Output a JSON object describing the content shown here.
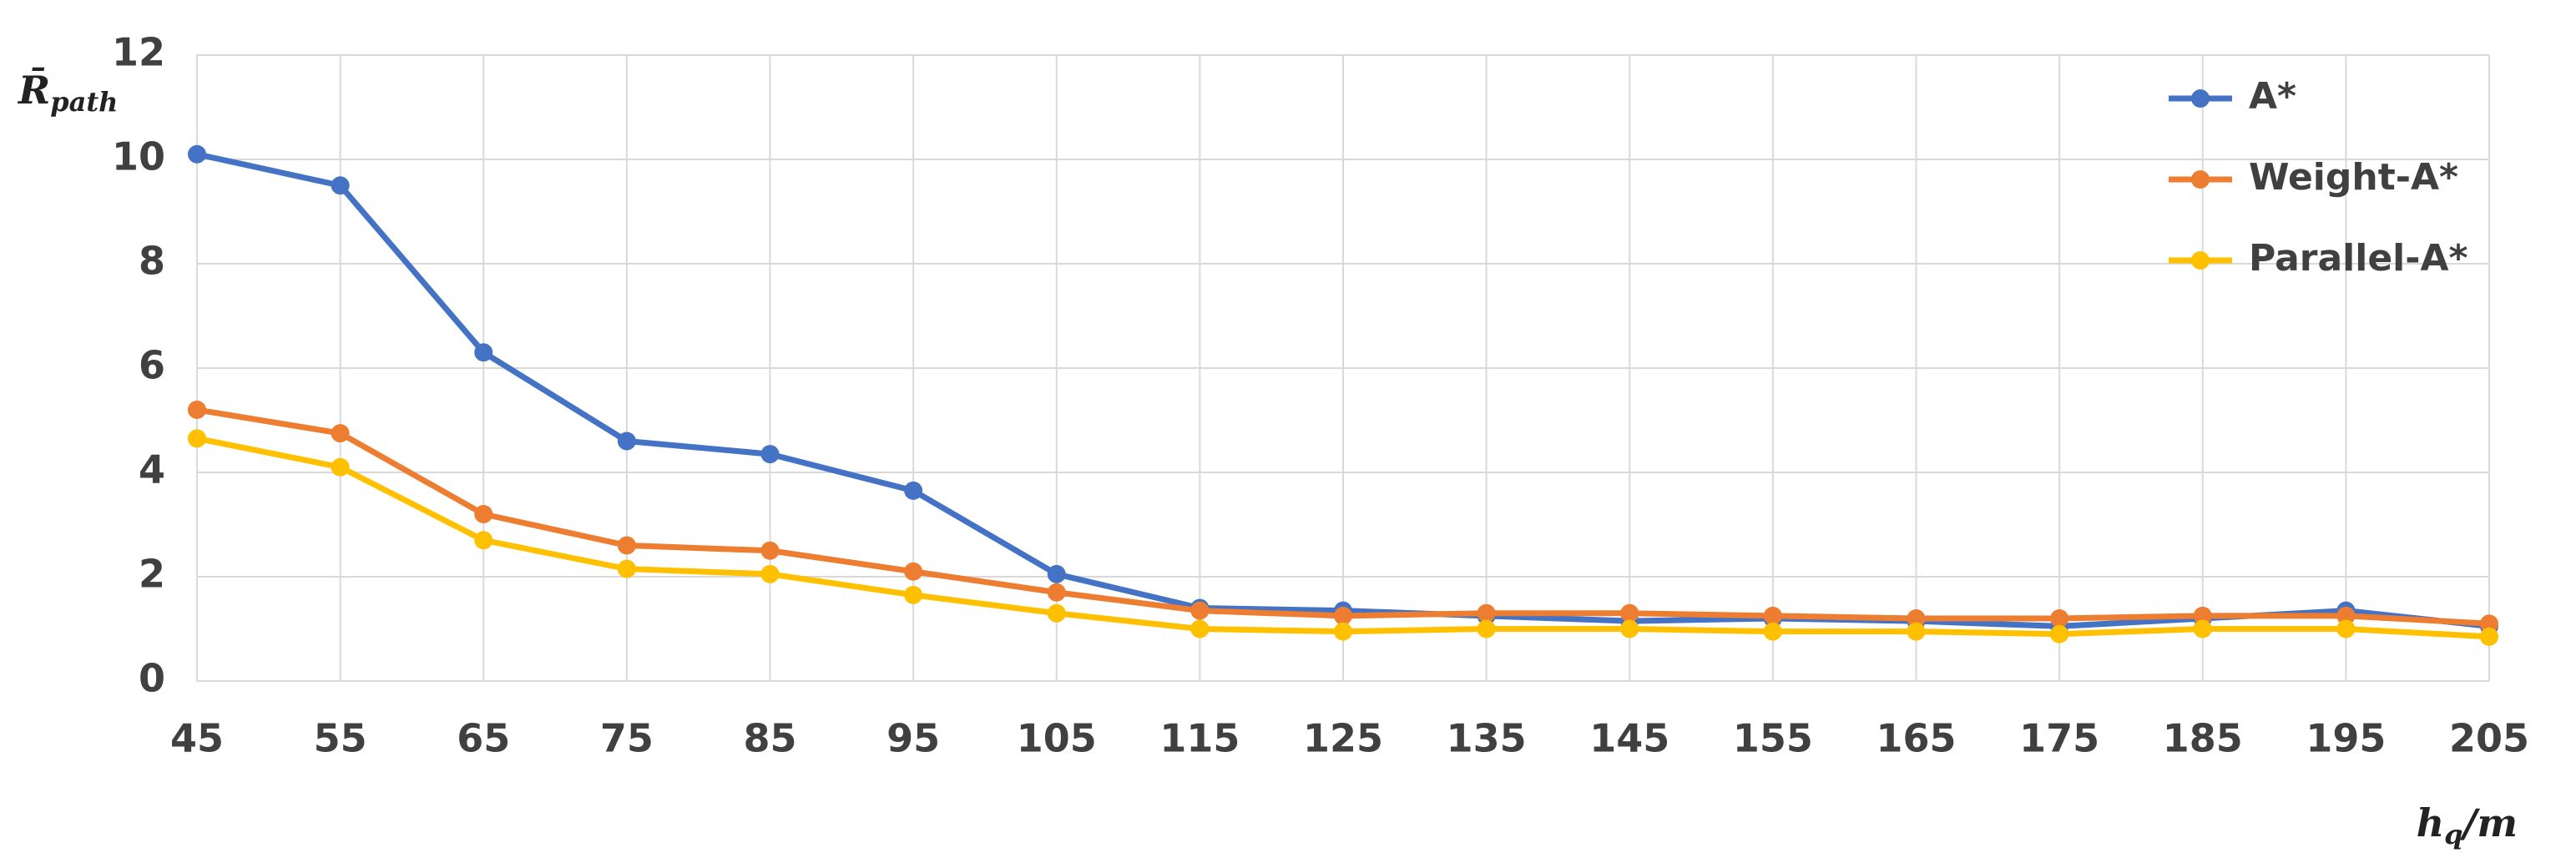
{
  "chart_data": {
    "type": "line",
    "y_label": {
      "main": "R̄",
      "sub": "path"
    },
    "x_label": {
      "main": "h",
      "sub": "q",
      "rest": "/m"
    },
    "x": [
      45,
      55,
      65,
      75,
      85,
      95,
      105,
      115,
      125,
      135,
      145,
      155,
      165,
      175,
      185,
      195,
      205
    ],
    "xlim": [
      45,
      205
    ],
    "xticks": [
      45,
      55,
      65,
      75,
      85,
      95,
      105,
      115,
      125,
      135,
      145,
      155,
      165,
      175,
      185,
      195,
      205
    ],
    "ylim": [
      0,
      12
    ],
    "yticks": [
      0,
      2,
      4,
      6,
      8,
      10,
      12
    ],
    "grid": true,
    "legend": "upper right",
    "series": [
      {
        "name": "A*",
        "color": "#4472c4",
        "values": [
          10.1,
          9.5,
          6.3,
          4.6,
          4.35,
          3.65,
          2.05,
          1.4,
          1.35,
          1.25,
          1.15,
          1.2,
          1.15,
          1.05,
          1.2,
          1.35,
          1.05
        ]
      },
      {
        "name": "Weight-A*",
        "color": "#ed7d31",
        "values": [
          5.2,
          4.75,
          3.2,
          2.6,
          2.5,
          2.1,
          1.7,
          1.35,
          1.25,
          1.3,
          1.3,
          1.25,
          1.2,
          1.2,
          1.25,
          1.25,
          1.1
        ]
      },
      {
        "name": "Parallel-A*",
        "color": "#ffc000",
        "values": [
          4.65,
          4.1,
          2.7,
          2.15,
          2.05,
          1.65,
          1.3,
          1.0,
          0.95,
          1.0,
          1.0,
          0.95,
          0.95,
          0.9,
          1.0,
          1.0,
          0.85
        ]
      }
    ]
  }
}
